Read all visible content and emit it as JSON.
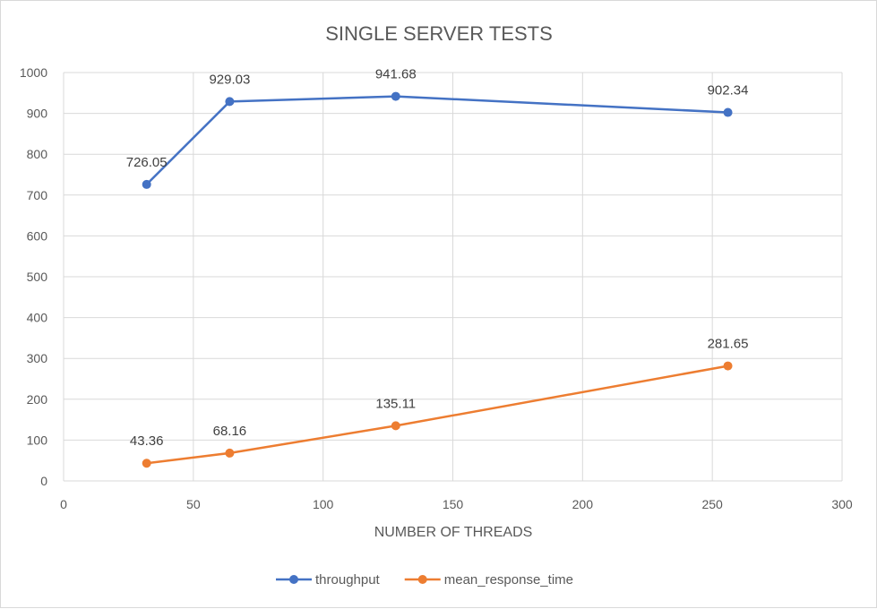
{
  "chart_data": {
    "type": "scatter",
    "title": "SINGLE SERVER TESTS",
    "xlabel": "NUMBER OF THREADS",
    "ylabel": "",
    "xlim": [
      0,
      300
    ],
    "ylim": [
      0,
      1000
    ],
    "xticks": [
      0,
      50,
      100,
      150,
      200,
      250,
      300
    ],
    "yticks": [
      0,
      100,
      200,
      300,
      400,
      500,
      600,
      700,
      800,
      900,
      1000
    ],
    "grid": true,
    "legend": "bottom",
    "x": [
      32,
      64,
      128,
      256
    ],
    "series": [
      {
        "name": "throughput",
        "color": "#4472c4",
        "values": [
          726.05,
          929.03,
          941.68,
          902.34
        ],
        "labels": [
          "726.05",
          "929.03",
          "941.68",
          "902.34"
        ]
      },
      {
        "name": "mean_response_time",
        "color": "#ed7d31",
        "values": [
          43.36,
          68.16,
          135.11,
          281.65
        ],
        "labels": [
          "43.36",
          "68.16",
          "135.11",
          "281.65"
        ]
      }
    ]
  }
}
